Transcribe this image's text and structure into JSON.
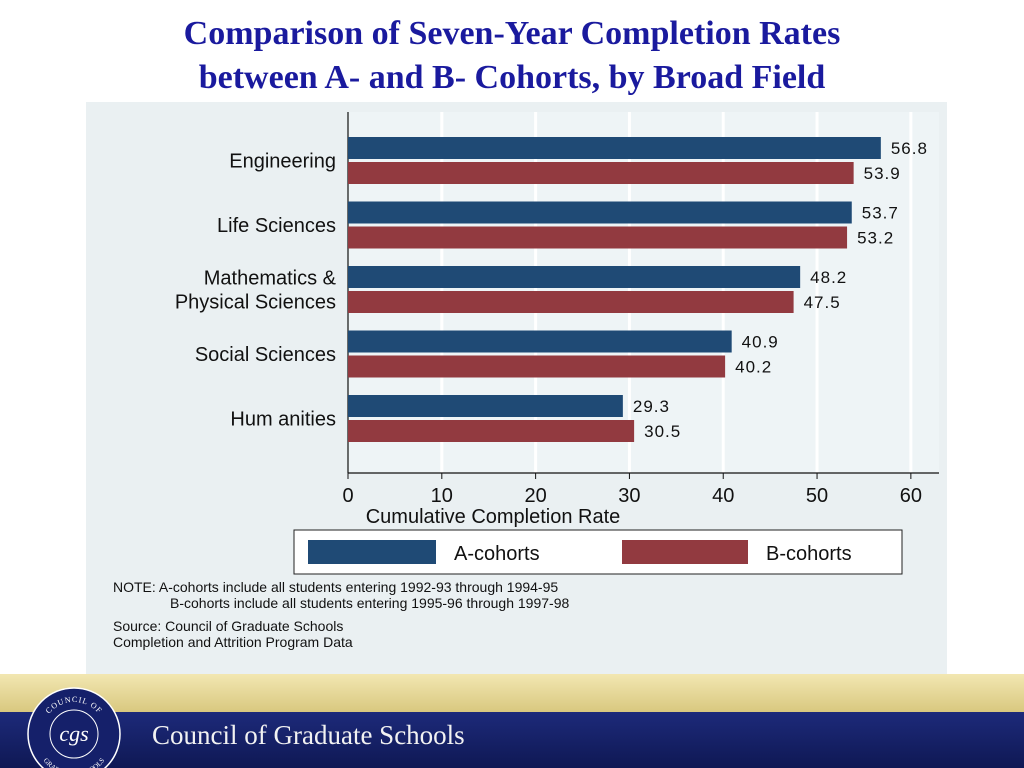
{
  "slide": {
    "title_line1": "Comparison of Seven-Year Completion Rates",
    "title_line2": "between A- and B- Cohorts, by Broad Field"
  },
  "chart_data": {
    "type": "bar",
    "orientation": "horizontal",
    "categories": [
      "Engineering",
      "Life Sciences",
      "Mathematics & Physical Sciences",
      "Social Sciences",
      "Humanities"
    ],
    "category_label_lines": [
      [
        "Engineering"
      ],
      [
        "Life Sciences"
      ],
      [
        "Mathematics &",
        "Physical Sciences"
      ],
      [
        "Social Sciences"
      ],
      [
        "Hum anities"
      ]
    ],
    "series": [
      {
        "name": "A-cohorts",
        "color": "#1f4a75",
        "values": [
          56.8,
          53.7,
          48.2,
          40.9,
          29.3
        ]
      },
      {
        "name": "B-cohorts",
        "color": "#923a40",
        "values": [
          53.9,
          53.2,
          47.5,
          40.2,
          30.5
        ]
      }
    ],
    "value_labels": [
      [
        "56.8",
        "53.9"
      ],
      [
        "53.7",
        "53.2"
      ],
      [
        "48.2",
        "47.5"
      ],
      [
        "40.9",
        "40.2"
      ],
      [
        "29.3",
        "30.5"
      ]
    ],
    "xlabel": "Cumulative Completion Rate",
    "xlim": [
      0,
      63
    ],
    "xticks": [
      0,
      10,
      20,
      30,
      40,
      50,
      60
    ],
    "grid": "vertical",
    "legend": "bottom",
    "legend_labels": [
      "A-cohorts",
      "B-cohorts"
    ]
  },
  "notes": {
    "line1": "NOTE: A-cohorts include all students entering 1992-93 through 1994-95",
    "line2": "B-cohorts include all students entering 1995-96 through 1997-98",
    "source1": "Source: Council of Graduate Schools",
    "source2": "Completion and Attrition Program Data"
  },
  "footer": {
    "org_name": "Council of Graduate Schools",
    "seal_top_text": "COUNCIL OF",
    "seal_bottom_text": "GRADUATE SCHOOLS",
    "seal_monogram": "cgs"
  },
  "colors": {
    "title": "#1a1a9e",
    "panel_bg": "#eaf0f2",
    "a_cohorts": "#1f4a75",
    "b_cohorts": "#923a40",
    "footer_blue": "#15206a",
    "footer_gold": "#e6d795"
  }
}
